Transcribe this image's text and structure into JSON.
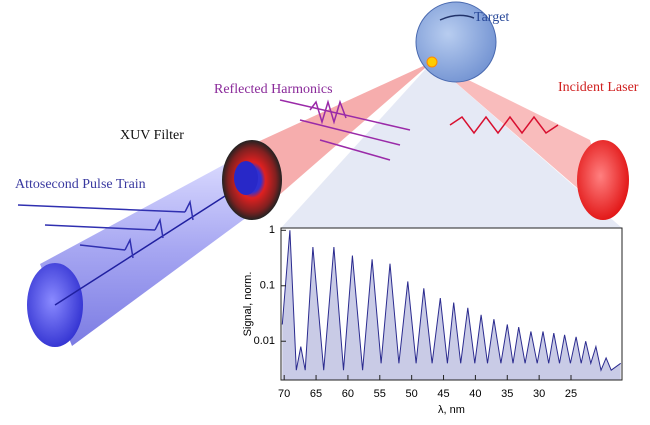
{
  "labels": {
    "target": "Target",
    "reflected": "Reflected Harmonics",
    "incident": "Incident Laser",
    "filter": "XUV Filter",
    "pulse_train": "Attosecond Pulse Train"
  },
  "chart_data": {
    "type": "line",
    "x_label": "λ, nm",
    "y_label": "Signal, norm.",
    "x": [
      70.3,
      69.1,
      68.1,
      67.4,
      66.7,
      65.5,
      63.8,
      62.2,
      60.7,
      59.3,
      57.7,
      56.2,
      54.8,
      53.4,
      52.0,
      50.6,
      49.3,
      48.1,
      46.8,
      45.5,
      44.4,
      43.4,
      42.3,
      41.2,
      40.1,
      39.1,
      38.1,
      37.1,
      36.0,
      35.0,
      34.1,
      33.2,
      32.2,
      31.3,
      30.3,
      29.4,
      28.5,
      27.7,
      26.8,
      26.0,
      25.1,
      24.2,
      23.4,
      22.7,
      21.9,
      21.1,
      20.3,
      19.5,
      18.7,
      17.2
    ],
    "series": [
      {
        "color": "#2b2b8f",
        "values": [
          0.02,
          1,
          0.003,
          0.008,
          0.003,
          0.5,
          0.003,
          0.5,
          0.003,
          0.35,
          0.003,
          0.3,
          0.004,
          0.25,
          0.004,
          0.12,
          0.004,
          0.09,
          0.004,
          0.06,
          0.004,
          0.05,
          0.004,
          0.04,
          0.004,
          0.03,
          0.004,
          0.025,
          0.004,
          0.02,
          0.004,
          0.018,
          0.004,
          0.015,
          0.004,
          0.015,
          0.004,
          0.014,
          0.004,
          0.013,
          0.004,
          0.012,
          0.004,
          0.01,
          0.004,
          0.008,
          0.003,
          0.005,
          0.003,
          0.004
        ]
      }
    ],
    "fill_color": "#c9cbe6",
    "xlim": [
      70.5,
      17
    ],
    "ylim": [
      0.002,
      1.1
    ],
    "xticks": [
      70,
      65,
      60,
      55,
      50,
      45,
      40,
      35,
      30,
      25
    ],
    "yticks": [
      1,
      0.1,
      0.01
    ],
    "log_scale_y": true
  }
}
